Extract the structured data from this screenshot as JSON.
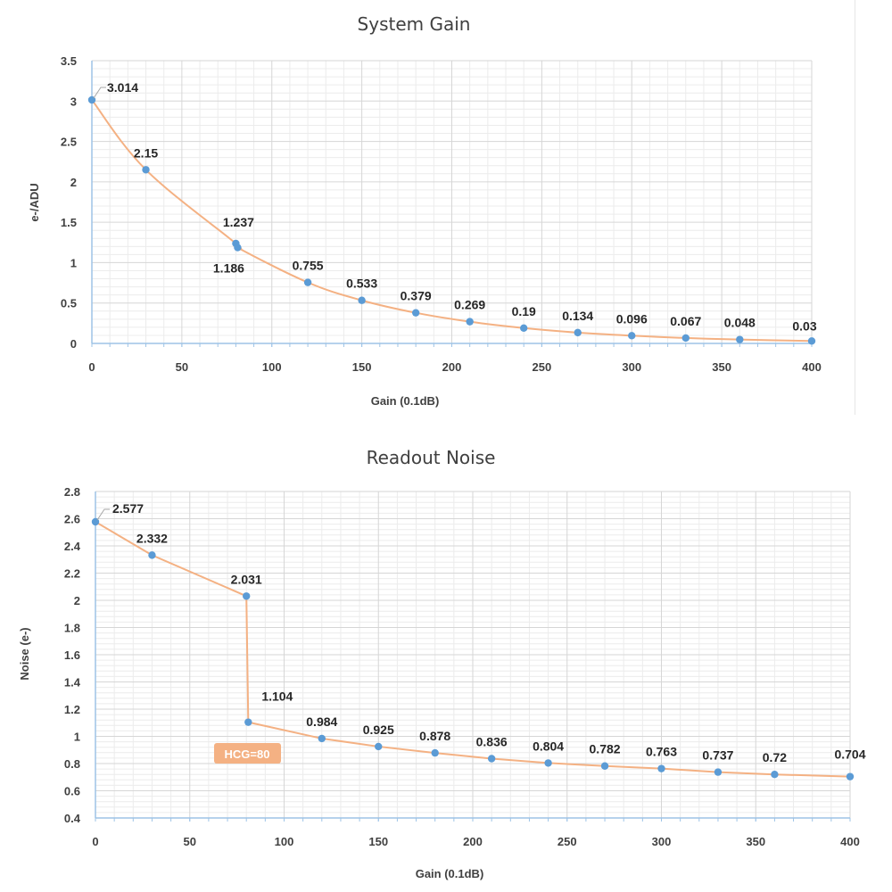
{
  "chart_data": [
    {
      "type": "line",
      "title": "System Gain",
      "xlabel": "Gain (0.1dB)",
      "ylabel": "e-/ADU",
      "xlim": [
        0,
        400
      ],
      "ylim": [
        0,
        3.5
      ],
      "xticks": [
        0,
        50,
        100,
        150,
        200,
        250,
        300,
        350,
        400
      ],
      "xtick_labels": [
        "0",
        "50",
        "100",
        "150",
        "200",
        "250",
        "300",
        "350",
        "400"
      ],
      "yticks": [
        0,
        0.5,
        1,
        1.5,
        2,
        2.5,
        3,
        3.5
      ],
      "ytick_labels": [
        "0",
        "0.5",
        "1",
        "1.5",
        "2",
        "2.5",
        "3",
        "3.5"
      ],
      "grid": true,
      "line_color": "#f4b183",
      "marker_color": "#5b9bd5",
      "series": [
        {
          "x": [
            0,
            30,
            80,
            81,
            120,
            150,
            180,
            210,
            240,
            270,
            300,
            330,
            360,
            400
          ],
          "y": [
            3.014,
            2.15,
            1.237,
            1.186,
            0.755,
            0.533,
            0.379,
            0.269,
            0.19,
            0.134,
            0.096,
            0.067,
            0.048,
            0.03
          ],
          "labels": [
            "3.014",
            "2.15",
            "1.237",
            "1.186",
            "0.755",
            "0.533",
            "0.379",
            "0.269",
            "0.19",
            "0.134",
            "0.096",
            "0.067",
            "0.048",
            "0.03"
          ]
        }
      ]
    },
    {
      "type": "line",
      "title": "Readout Noise",
      "xlabel": "Gain (0.1dB)",
      "ylabel": "Noise (e-)",
      "xlim": [
        0,
        400
      ],
      "ylim": [
        0.4,
        2.8
      ],
      "xticks": [
        0,
        50,
        100,
        150,
        200,
        250,
        300,
        350,
        400
      ],
      "xtick_labels": [
        "0",
        "50",
        "100",
        "150",
        "200",
        "250",
        "300",
        "350",
        "400"
      ],
      "yticks": [
        0.4,
        0.6,
        0.8,
        1,
        1.2,
        1.4,
        1.6,
        1.8,
        2,
        2.2,
        2.4,
        2.6,
        2.8
      ],
      "ytick_labels": [
        "0.4",
        "0.6",
        "0.8",
        "1",
        "1.2",
        "1.4",
        "1.6",
        "1.8",
        "2",
        "2.2",
        "2.4",
        "2.6",
        "2.8"
      ],
      "grid": true,
      "line_color": "#f4b183",
      "marker_color": "#5b9bd5",
      "annotation": {
        "text": "HCG=80",
        "color": "#f4b183"
      },
      "series": [
        {
          "x": [
            0,
            30,
            80,
            81,
            120,
            150,
            180,
            210,
            240,
            270,
            300,
            330,
            360,
            400
          ],
          "y": [
            2.577,
            2.332,
            2.031,
            1.104,
            0.984,
            0.925,
            0.878,
            0.836,
            0.804,
            0.782,
            0.763,
            0.737,
            0.72,
            0.704
          ],
          "labels": [
            "2.577",
            "2.332",
            "2.031",
            "1.104",
            "0.984",
            "0.925",
            "0.878",
            "0.836",
            "0.804",
            "0.782",
            "0.763",
            "0.737",
            "0.72",
            "0.704"
          ]
        }
      ]
    }
  ]
}
